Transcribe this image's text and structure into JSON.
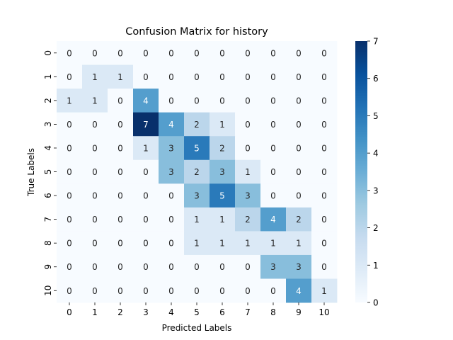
{
  "chart_data": {
    "type": "heatmap",
    "title": "Confusion Matrix for history",
    "xlabel": "Predicted Labels",
    "ylabel": "True Labels",
    "x_categories": [
      "0",
      "1",
      "2",
      "3",
      "4",
      "5",
      "6",
      "7",
      "8",
      "9",
      "10"
    ],
    "y_categories": [
      "0",
      "1",
      "2",
      "3",
      "4",
      "5",
      "6",
      "7",
      "8",
      "9",
      "10"
    ],
    "values": [
      [
        0,
        0,
        0,
        0,
        0,
        0,
        0,
        0,
        0,
        0,
        0
      ],
      [
        0,
        1,
        1,
        0,
        0,
        0,
        0,
        0,
        0,
        0,
        0
      ],
      [
        1,
        1,
        0,
        4,
        0,
        0,
        0,
        0,
        0,
        0,
        0
      ],
      [
        0,
        0,
        0,
        7,
        4,
        2,
        1,
        0,
        0,
        0,
        0
      ],
      [
        0,
        0,
        0,
        1,
        3,
        5,
        2,
        0,
        0,
        0,
        0
      ],
      [
        0,
        0,
        0,
        0,
        3,
        2,
        3,
        1,
        0,
        0,
        0
      ],
      [
        0,
        0,
        0,
        0,
        0,
        3,
        5,
        3,
        0,
        0,
        0
      ],
      [
        0,
        0,
        0,
        0,
        0,
        1,
        1,
        2,
        4,
        2,
        0
      ],
      [
        0,
        0,
        0,
        0,
        0,
        1,
        1,
        1,
        1,
        1,
        0
      ],
      [
        0,
        0,
        0,
        0,
        0,
        0,
        0,
        0,
        3,
        3,
        0
      ],
      [
        0,
        0,
        0,
        0,
        0,
        0,
        0,
        0,
        0,
        4,
        1
      ]
    ],
    "colorbar": {
      "min": 0,
      "max": 7,
      "ticks": [
        "0",
        "1",
        "2",
        "3",
        "4",
        "5",
        "6",
        "7"
      ]
    },
    "colormap": "Blues",
    "grid": false
  }
}
